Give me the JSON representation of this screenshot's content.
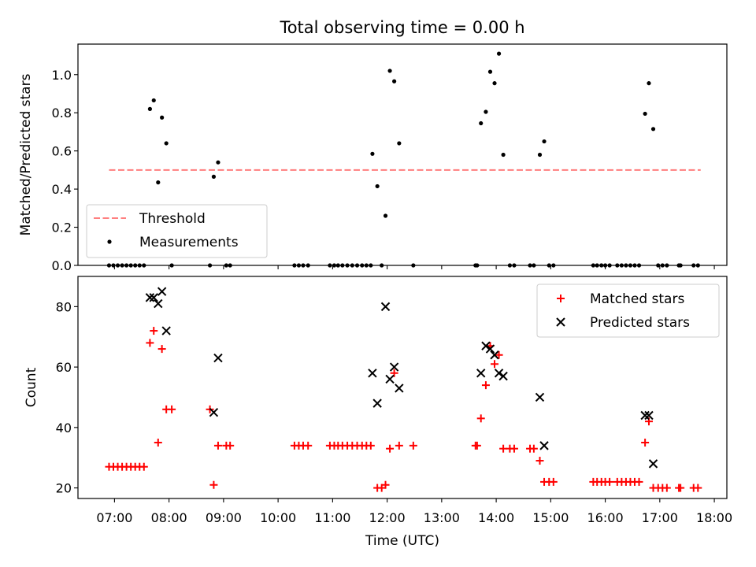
{
  "figure": {
    "title": "Total observing time = 0.00 h",
    "xlabel": "Time (UTC)",
    "x_ticks": [
      {
        "h": 7,
        "label": "07:00"
      },
      {
        "h": 8,
        "label": "08:00"
      },
      {
        "h": 9,
        "label": "09:00"
      },
      {
        "h": 10,
        "label": "10:00"
      },
      {
        "h": 11,
        "label": "11:00"
      },
      {
        "h": 12,
        "label": "12:00"
      },
      {
        "h": 13,
        "label": "13:00"
      },
      {
        "h": 14,
        "label": "14:00"
      },
      {
        "h": 15,
        "label": "15:00"
      },
      {
        "h": 16,
        "label": "16:00"
      },
      {
        "h": 17,
        "label": "17:00"
      },
      {
        "h": 18,
        "label": "18:00"
      }
    ]
  },
  "chart_data": [
    {
      "type": "scatter",
      "ylabel": "Matched/Predicted stars",
      "xlim": [
        6.33,
        18.23
      ],
      "ylim": [
        0,
        1.16
      ],
      "y_ticks": [
        {
          "v": 0.0,
          "label": "0.0"
        },
        {
          "v": 0.2,
          "label": "0.2"
        },
        {
          "v": 0.4,
          "label": "0.4"
        },
        {
          "v": 0.6,
          "label": "0.6"
        },
        {
          "v": 0.8,
          "label": "0.8"
        },
        {
          "v": 1.0,
          "label": "1.0"
        }
      ],
      "legend_position": "lower-left",
      "threshold": {
        "name": "Threshold",
        "value": 0.5,
        "x_range": [
          6.9,
          17.75
        ],
        "color": "#ff7f7f"
      },
      "series": [
        {
          "name": "Measurements",
          "color": "#000000",
          "points": [
            [
              6.9,
              0
            ],
            [
              6.98,
              0
            ],
            [
              7.06,
              0
            ],
            [
              7.14,
              0
            ],
            [
              7.22,
              0
            ],
            [
              7.3,
              0
            ],
            [
              7.38,
              0
            ],
            [
              7.46,
              0
            ],
            [
              7.54,
              0
            ],
            [
              7.65,
              0.82
            ],
            [
              7.72,
              0.865
            ],
            [
              7.8,
              0.435
            ],
            [
              7.87,
              0.775
            ],
            [
              7.95,
              0.64
            ],
            [
              8.05,
              0
            ],
            [
              8.75,
              0
            ],
            [
              8.82,
              0.465
            ],
            [
              8.9,
              0.54
            ],
            [
              9.05,
              0
            ],
            [
              9.12,
              0
            ],
            [
              10.3,
              0
            ],
            [
              10.38,
              0
            ],
            [
              10.46,
              0
            ],
            [
              10.55,
              0
            ],
            [
              10.95,
              0
            ],
            [
              11.03,
              0
            ],
            [
              11.1,
              0
            ],
            [
              11.18,
              0
            ],
            [
              11.27,
              0
            ],
            [
              11.36,
              0
            ],
            [
              11.45,
              0
            ],
            [
              11.54,
              0
            ],
            [
              11.62,
              0
            ],
            [
              11.7,
              0
            ],
            [
              11.73,
              0.585
            ],
            [
              11.82,
              0.415
            ],
            [
              11.9,
              0
            ],
            [
              11.97,
              0.26
            ],
            [
              12.05,
              1.02
            ],
            [
              12.13,
              0.965
            ],
            [
              12.22,
              0.64
            ],
            [
              12.48,
              0
            ],
            [
              13.62,
              0
            ],
            [
              13.65,
              0
            ],
            [
              13.72,
              0.745
            ],
            [
              13.81,
              0.805
            ],
            [
              13.89,
              1.015
            ],
            [
              13.97,
              0.955
            ],
            [
              14.05,
              1.11
            ],
            [
              14.13,
              0.58
            ],
            [
              14.25,
              0
            ],
            [
              14.33,
              0
            ],
            [
              14.62,
              0
            ],
            [
              14.69,
              0
            ],
            [
              14.8,
              0.58
            ],
            [
              14.88,
              0.65
            ],
            [
              14.97,
              0
            ],
            [
              15.05,
              0
            ],
            [
              15.78,
              0
            ],
            [
              15.85,
              0
            ],
            [
              15.93,
              0
            ],
            [
              16.0,
              0
            ],
            [
              16.08,
              0
            ],
            [
              16.22,
              0
            ],
            [
              16.3,
              0
            ],
            [
              16.38,
              0
            ],
            [
              16.46,
              0
            ],
            [
              16.54,
              0
            ],
            [
              16.62,
              0
            ],
            [
              16.73,
              0.795
            ],
            [
              16.8,
              0.955
            ],
            [
              16.88,
              0.715
            ],
            [
              16.97,
              0
            ],
            [
              17.05,
              0
            ],
            [
              17.13,
              0
            ],
            [
              17.35,
              0
            ],
            [
              17.38,
              0
            ],
            [
              17.62,
              0
            ],
            [
              17.7,
              0
            ]
          ]
        }
      ]
    },
    {
      "type": "scatter",
      "ylabel": "Count",
      "xlim": [
        6.33,
        18.23
      ],
      "ylim": [
        16.5,
        90
      ],
      "y_ticks": [
        {
          "v": 20,
          "label": "20"
        },
        {
          "v": 40,
          "label": "40"
        },
        {
          "v": 60,
          "label": "60"
        },
        {
          "v": 80,
          "label": "80"
        }
      ],
      "legend_position": "upper-right",
      "series": [
        {
          "name": "Matched stars",
          "marker": "plus",
          "color": "#ff0000",
          "points": [
            [
              6.9,
              27
            ],
            [
              6.98,
              27
            ],
            [
              7.06,
              27
            ],
            [
              7.14,
              27
            ],
            [
              7.22,
              27
            ],
            [
              7.3,
              27
            ],
            [
              7.38,
              27
            ],
            [
              7.46,
              27
            ],
            [
              7.54,
              27
            ],
            [
              7.65,
              68
            ],
            [
              7.72,
              72
            ],
            [
              7.8,
              35
            ],
            [
              7.87,
              66
            ],
            [
              7.95,
              46
            ],
            [
              8.05,
              46
            ],
            [
              8.75,
              46
            ],
            [
              8.82,
              21
            ],
            [
              8.9,
              34
            ],
            [
              9.05,
              34
            ],
            [
              9.12,
              34
            ],
            [
              10.3,
              34
            ],
            [
              10.38,
              34
            ],
            [
              10.46,
              34
            ],
            [
              10.55,
              34
            ],
            [
              10.95,
              34
            ],
            [
              11.03,
              34
            ],
            [
              11.1,
              34
            ],
            [
              11.18,
              34
            ],
            [
              11.27,
              34
            ],
            [
              11.36,
              34
            ],
            [
              11.45,
              34
            ],
            [
              11.54,
              34
            ],
            [
              11.62,
              34
            ],
            [
              11.7,
              34
            ],
            [
              11.82,
              20
            ],
            [
              11.9,
              20
            ],
            [
              11.97,
              21
            ],
            [
              12.05,
              33
            ],
            [
              12.13,
              58
            ],
            [
              12.22,
              34
            ],
            [
              12.48,
              34
            ],
            [
              13.62,
              34
            ],
            [
              13.65,
              34
            ],
            [
              13.72,
              43
            ],
            [
              13.81,
              54
            ],
            [
              13.89,
              67
            ],
            [
              13.97,
              61
            ],
            [
              14.05,
              64
            ],
            [
              14.13,
              33
            ],
            [
              14.25,
              33
            ],
            [
              14.33,
              33
            ],
            [
              14.62,
              33
            ],
            [
              14.69,
              33
            ],
            [
              14.8,
              29
            ],
            [
              14.88,
              22
            ],
            [
              14.97,
              22
            ],
            [
              15.05,
              22
            ],
            [
              15.78,
              22
            ],
            [
              15.85,
              22
            ],
            [
              15.93,
              22
            ],
            [
              16.0,
              22
            ],
            [
              16.08,
              22
            ],
            [
              16.22,
              22
            ],
            [
              16.3,
              22
            ],
            [
              16.38,
              22
            ],
            [
              16.46,
              22
            ],
            [
              16.54,
              22
            ],
            [
              16.62,
              22
            ],
            [
              16.73,
              35
            ],
            [
              16.8,
              42
            ],
            [
              16.88,
              20
            ],
            [
              16.97,
              20
            ],
            [
              17.05,
              20
            ],
            [
              17.13,
              20
            ],
            [
              17.35,
              20
            ],
            [
              17.38,
              20
            ],
            [
              17.62,
              20
            ],
            [
              17.7,
              20
            ]
          ]
        },
        {
          "name": "Predicted stars",
          "marker": "x",
          "color": "#000000",
          "points": [
            [
              7.65,
              83
            ],
            [
              7.72,
              83
            ],
            [
              7.8,
              81
            ],
            [
              7.87,
              85
            ],
            [
              7.95,
              72
            ],
            [
              8.82,
              45
            ],
            [
              8.9,
              63
            ],
            [
              11.73,
              58
            ],
            [
              11.82,
              48
            ],
            [
              11.97,
              80
            ],
            [
              12.05,
              56
            ],
            [
              12.13,
              60
            ],
            [
              12.22,
              53
            ],
            [
              13.72,
              58
            ],
            [
              13.81,
              67
            ],
            [
              13.89,
              66
            ],
            [
              13.97,
              64
            ],
            [
              14.05,
              58
            ],
            [
              14.13,
              57
            ],
            [
              14.8,
              50
            ],
            [
              14.88,
              34
            ],
            [
              16.73,
              44
            ],
            [
              16.8,
              44
            ],
            [
              16.88,
              28
            ]
          ]
        }
      ]
    }
  ]
}
